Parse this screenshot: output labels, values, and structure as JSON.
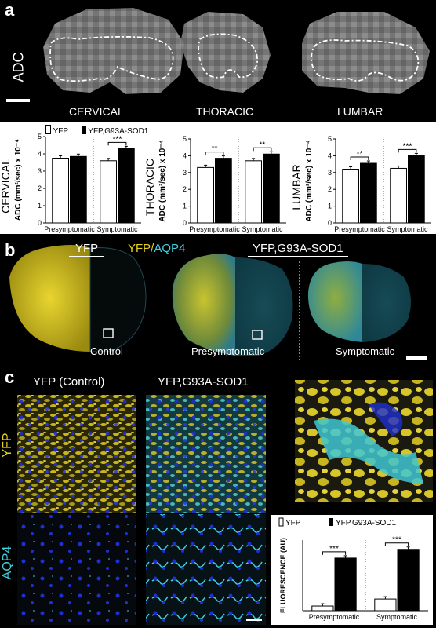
{
  "colors": {
    "yfp": "#e6d21e",
    "aqp4": "#3fd1e0",
    "nucleus": "#1f2fd0"
  },
  "panel_a": {
    "letter": "a",
    "modality": "ADC",
    "regions": [
      "CERVICAL",
      "THORACIC",
      "LUMBAR"
    ]
  },
  "chart_legend": {
    "yfp": "YFP",
    "mutant": "YFP,G93A-SOD1"
  },
  "chart_data": [
    {
      "type": "bar",
      "region": "CERVICAL",
      "ylabel": "ADC (mm²/sec) x 10⁻⁴",
      "ylim": [
        0,
        5
      ],
      "yticks": [
        0,
        1,
        2,
        3,
        4,
        5
      ],
      "categories": [
        "Presymptomatic",
        "Symptomatic"
      ],
      "series": [
        {
          "name": "YFP",
          "values": [
            3.75,
            3.6
          ]
        },
        {
          "name": "YFP,G93A-SOD1",
          "values": [
            3.85,
            4.3
          ]
        }
      ],
      "significance": [
        "",
        "***"
      ]
    },
    {
      "type": "bar",
      "region": "THORACIC",
      "ylabel": "ADC (mm²/sec) x 10⁻⁴",
      "ylim": [
        0,
        5
      ],
      "yticks": [
        0,
        1,
        2,
        3,
        4,
        5
      ],
      "categories": [
        "Presymptomatic",
        "Symptomatic"
      ],
      "series": [
        {
          "name": "YFP",
          "values": [
            3.3,
            3.7
          ]
        },
        {
          "name": "YFP,G93A-SOD1",
          "values": [
            3.85,
            4.1
          ]
        }
      ],
      "significance": [
        "**",
        "**"
      ]
    },
    {
      "type": "bar",
      "region": "LUMBAR",
      "ylabel": "ADC (mm²/sec) x 10⁻⁴",
      "ylim": [
        0,
        5
      ],
      "yticks": [
        0,
        1,
        2,
        3,
        4,
        5
      ],
      "categories": [
        "Presymptomatic",
        "Symptomatic"
      ],
      "series": [
        {
          "name": "YFP",
          "values": [
            3.2,
            3.25
          ]
        },
        {
          "name": "YFP,G93A-SOD1",
          "values": [
            3.55,
            4.0
          ]
        }
      ],
      "significance": [
        "**",
        "***"
      ]
    },
    {
      "type": "bar",
      "region": "FLUORESCENCE",
      "ylabel": "FLUORESCENCE (AU)",
      "categories": [
        "Presymptomatic",
        "Symptomatic"
      ],
      "series": [
        {
          "name": "YFP",
          "values": [
            0.8,
            2.0
          ]
        },
        {
          "name": "YFP,G93A-SOD1",
          "values": [
            9.0,
            10.5
          ]
        }
      ],
      "significance": [
        "***",
        "***"
      ]
    }
  ],
  "panel_b": {
    "letter": "b",
    "header_yfp": "YFP",
    "header_yfp2": "YFP/",
    "header_aqp4": "AQP4",
    "header_mutant": "YFP,G93A-SOD1",
    "labels": [
      "Control",
      "Presymptomatic",
      "Symptomatic"
    ]
  },
  "panel_c": {
    "letter": "c",
    "col1": "YFP (Control)",
    "col2": "YFP,G93A-SOD1",
    "row1": "YFP",
    "row2": "AQP4"
  }
}
